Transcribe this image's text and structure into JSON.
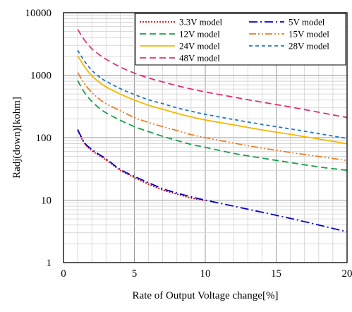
{
  "chart_data": {
    "type": "line",
    "title": "",
    "xlabel": "Rate of Output Voltage change[%]",
    "ylabel": "Radj(down)[kohm]",
    "xlim": [
      0,
      20
    ],
    "ylim": [
      1,
      10000
    ],
    "yscale": "log",
    "grid": true,
    "legend_position": "top-right",
    "x_ticks": [
      "0",
      "5",
      "10",
      "15",
      "20"
    ],
    "y_ticks": [
      "1",
      "10",
      "100",
      "1000",
      "10000"
    ],
    "series": [
      {
        "name": "3.3V model",
        "color": "#e00000",
        "dash": "dotted",
        "x": [
          1,
          1.5,
          2,
          2.5,
          3,
          4,
          5,
          6,
          7,
          8,
          9,
          10
        ],
        "y": [
          130,
          80,
          62,
          52,
          44,
          30,
          23,
          18,
          14.5,
          12.5,
          10.8,
          9.8
        ]
      },
      {
        "name": "5V model",
        "color": "#0000cc",
        "dash": "dashdot",
        "x": [
          1,
          1.5,
          2,
          2.5,
          3,
          4,
          5,
          6,
          7,
          8,
          9,
          10,
          12,
          14,
          16,
          18,
          20
        ],
        "y": [
          135,
          82,
          65,
          54,
          46,
          31,
          24,
          19,
          15.2,
          13,
          11.3,
          10,
          8,
          6.4,
          5.1,
          4,
          3.1
        ]
      },
      {
        "name": "12V model",
        "color": "#1aa04a",
        "dash": "dash",
        "x": [
          1,
          1.5,
          2,
          2.5,
          3,
          4,
          5,
          6,
          7,
          8,
          9,
          10,
          12,
          14,
          16,
          18,
          20
        ],
        "y": [
          820,
          520,
          380,
          300,
          250,
          190,
          150,
          125,
          105,
          90,
          78,
          70,
          56,
          47,
          40,
          34,
          30
        ]
      },
      {
        "name": "15V model",
        "color": "#e87f2a",
        "dash": "dashdotdot",
        "x": [
          1,
          1.5,
          2,
          2.5,
          3,
          4,
          5,
          6,
          7,
          8,
          9,
          10,
          12,
          14,
          16,
          18,
          20
        ],
        "y": [
          1100,
          720,
          530,
          420,
          350,
          270,
          210,
          175,
          150,
          130,
          112,
          100,
          82,
          68,
          58,
          50,
          43
        ]
      },
      {
        "name": "24V model",
        "color": "#f5b800",
        "dash": "solid",
        "x": [
          1,
          1.5,
          2,
          2.5,
          3,
          4,
          5,
          6,
          7,
          8,
          9,
          10,
          12,
          14,
          16,
          18,
          20
        ],
        "y": [
          2050,
          1350,
          980,
          780,
          650,
          500,
          400,
          330,
          285,
          245,
          215,
          192,
          160,
          133,
          113,
          95,
          80
        ]
      },
      {
        "name": "28V model",
        "color": "#1f78c8",
        "dash": "shortdash",
        "x": [
          1,
          1.5,
          2,
          2.5,
          3,
          4,
          5,
          6,
          7,
          8,
          9,
          10,
          12,
          14,
          16,
          18,
          20
        ],
        "y": [
          2500,
          1650,
          1200,
          950,
          800,
          610,
          490,
          405,
          350,
          300,
          265,
          236,
          195,
          163,
          138,
          116,
          97
        ]
      },
      {
        "name": "48V model",
        "color": "#e0307a",
        "dash": "dash",
        "x": [
          1,
          1.5,
          2,
          2.5,
          3,
          4,
          5,
          6,
          7,
          8,
          9,
          10,
          12,
          14,
          16,
          18,
          20
        ],
        "y": [
          5400,
          3600,
          2650,
          2150,
          1800,
          1350,
          1080,
          900,
          780,
          680,
          600,
          540,
          445,
          370,
          310,
          255,
          210
        ]
      }
    ]
  }
}
